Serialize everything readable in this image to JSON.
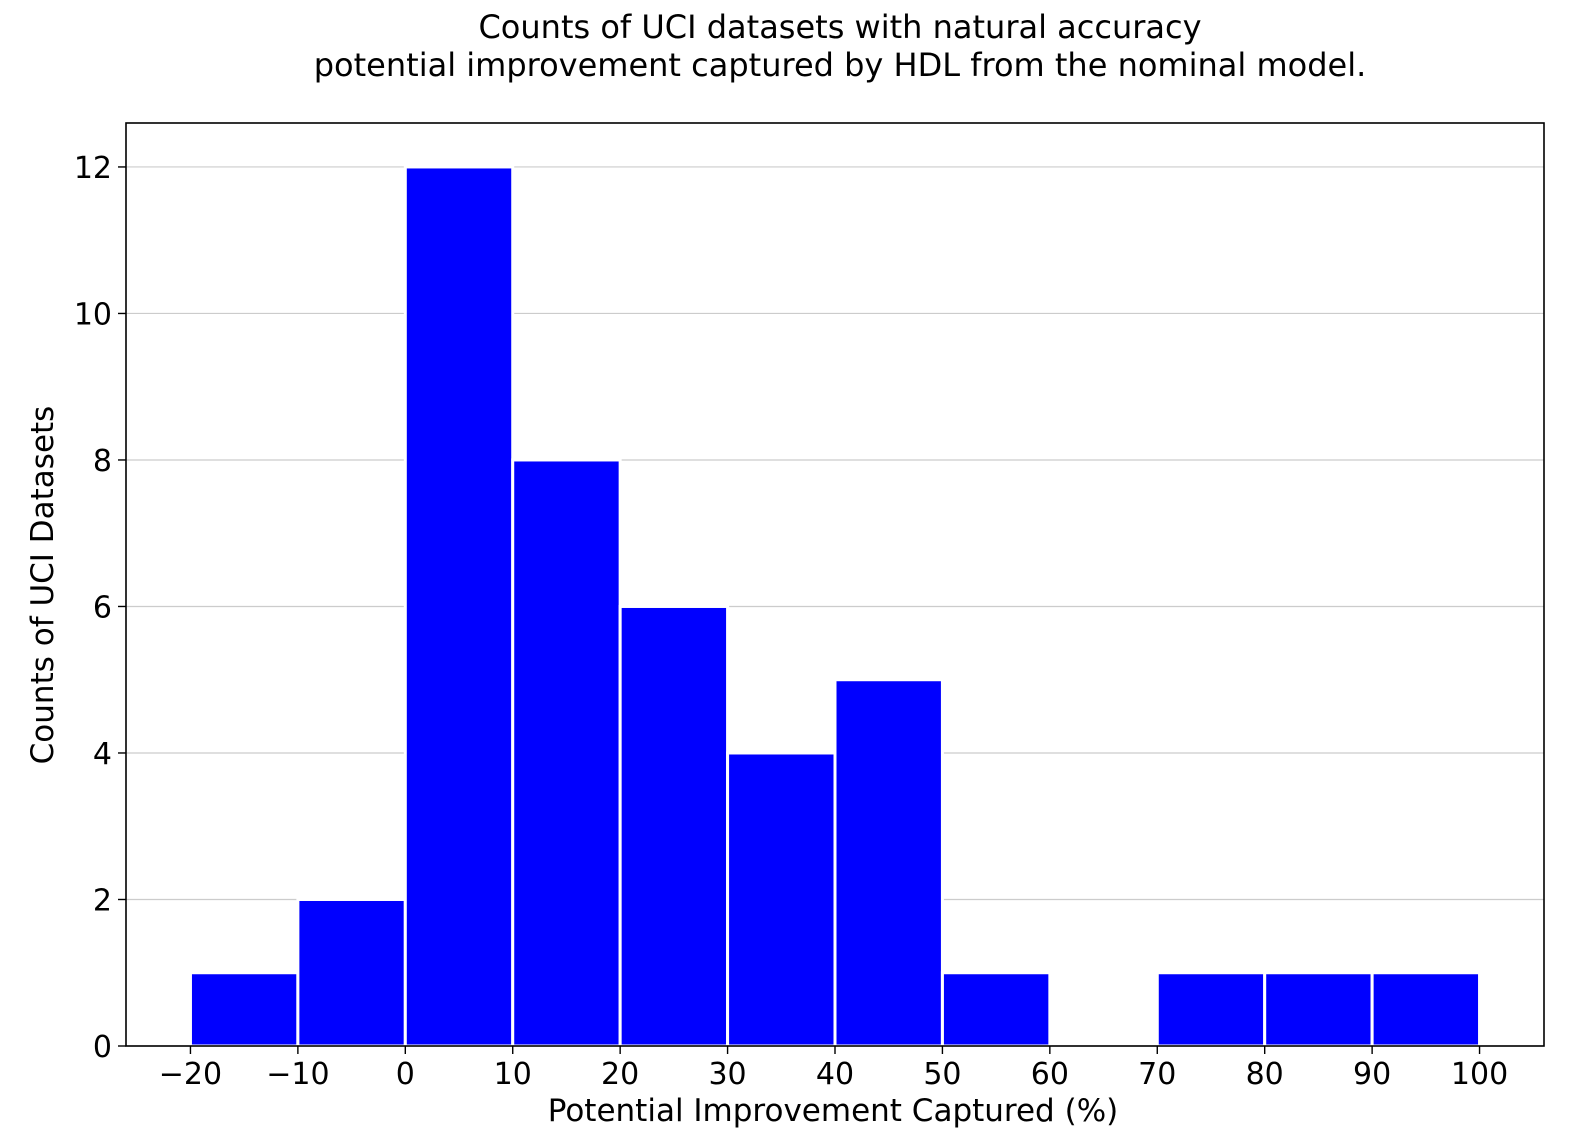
{
  "chart_data": {
    "type": "bar",
    "title": [
      "Counts of UCI datasets with natural accuracy",
      "potential improvement captured by HDL from the nominal model."
    ],
    "xlabel": "Potential Improvement Captured (%)",
    "ylabel": "Counts of UCI Datasets",
    "bins": [
      {
        "from": -20,
        "to": -10,
        "count": 1
      },
      {
        "from": -10,
        "to": 0,
        "count": 2
      },
      {
        "from": 0,
        "to": 10,
        "count": 12
      },
      {
        "from": 10,
        "to": 20,
        "count": 8
      },
      {
        "from": 20,
        "to": 30,
        "count": 6
      },
      {
        "from": 30,
        "to": 40,
        "count": 4
      },
      {
        "from": 40,
        "to": 50,
        "count": 5
      },
      {
        "from": 50,
        "to": 60,
        "count": 1
      },
      {
        "from": 60,
        "to": 70,
        "count": 0
      },
      {
        "from": 70,
        "to": 80,
        "count": 1
      },
      {
        "from": 80,
        "to": 90,
        "count": 1
      },
      {
        "from": 90,
        "to": 100,
        "count": 1
      }
    ],
    "xticks": [
      -20,
      -10,
      0,
      10,
      20,
      30,
      40,
      50,
      60,
      70,
      80,
      90,
      100
    ],
    "xtick_labels": [
      "−20",
      "−10",
      "0",
      "10",
      "20",
      "30",
      "40",
      "50",
      "60",
      "70",
      "80",
      "90",
      "100"
    ],
    "yticks": [
      0,
      2,
      4,
      6,
      8,
      10,
      12
    ],
    "xlim": [
      -26,
      106
    ],
    "ylim": [
      0,
      12.6
    ],
    "grid": "horizontal",
    "bar_color": "#0000ff",
    "edge_color": "#ffffff",
    "grid_color": "#cccccc"
  }
}
